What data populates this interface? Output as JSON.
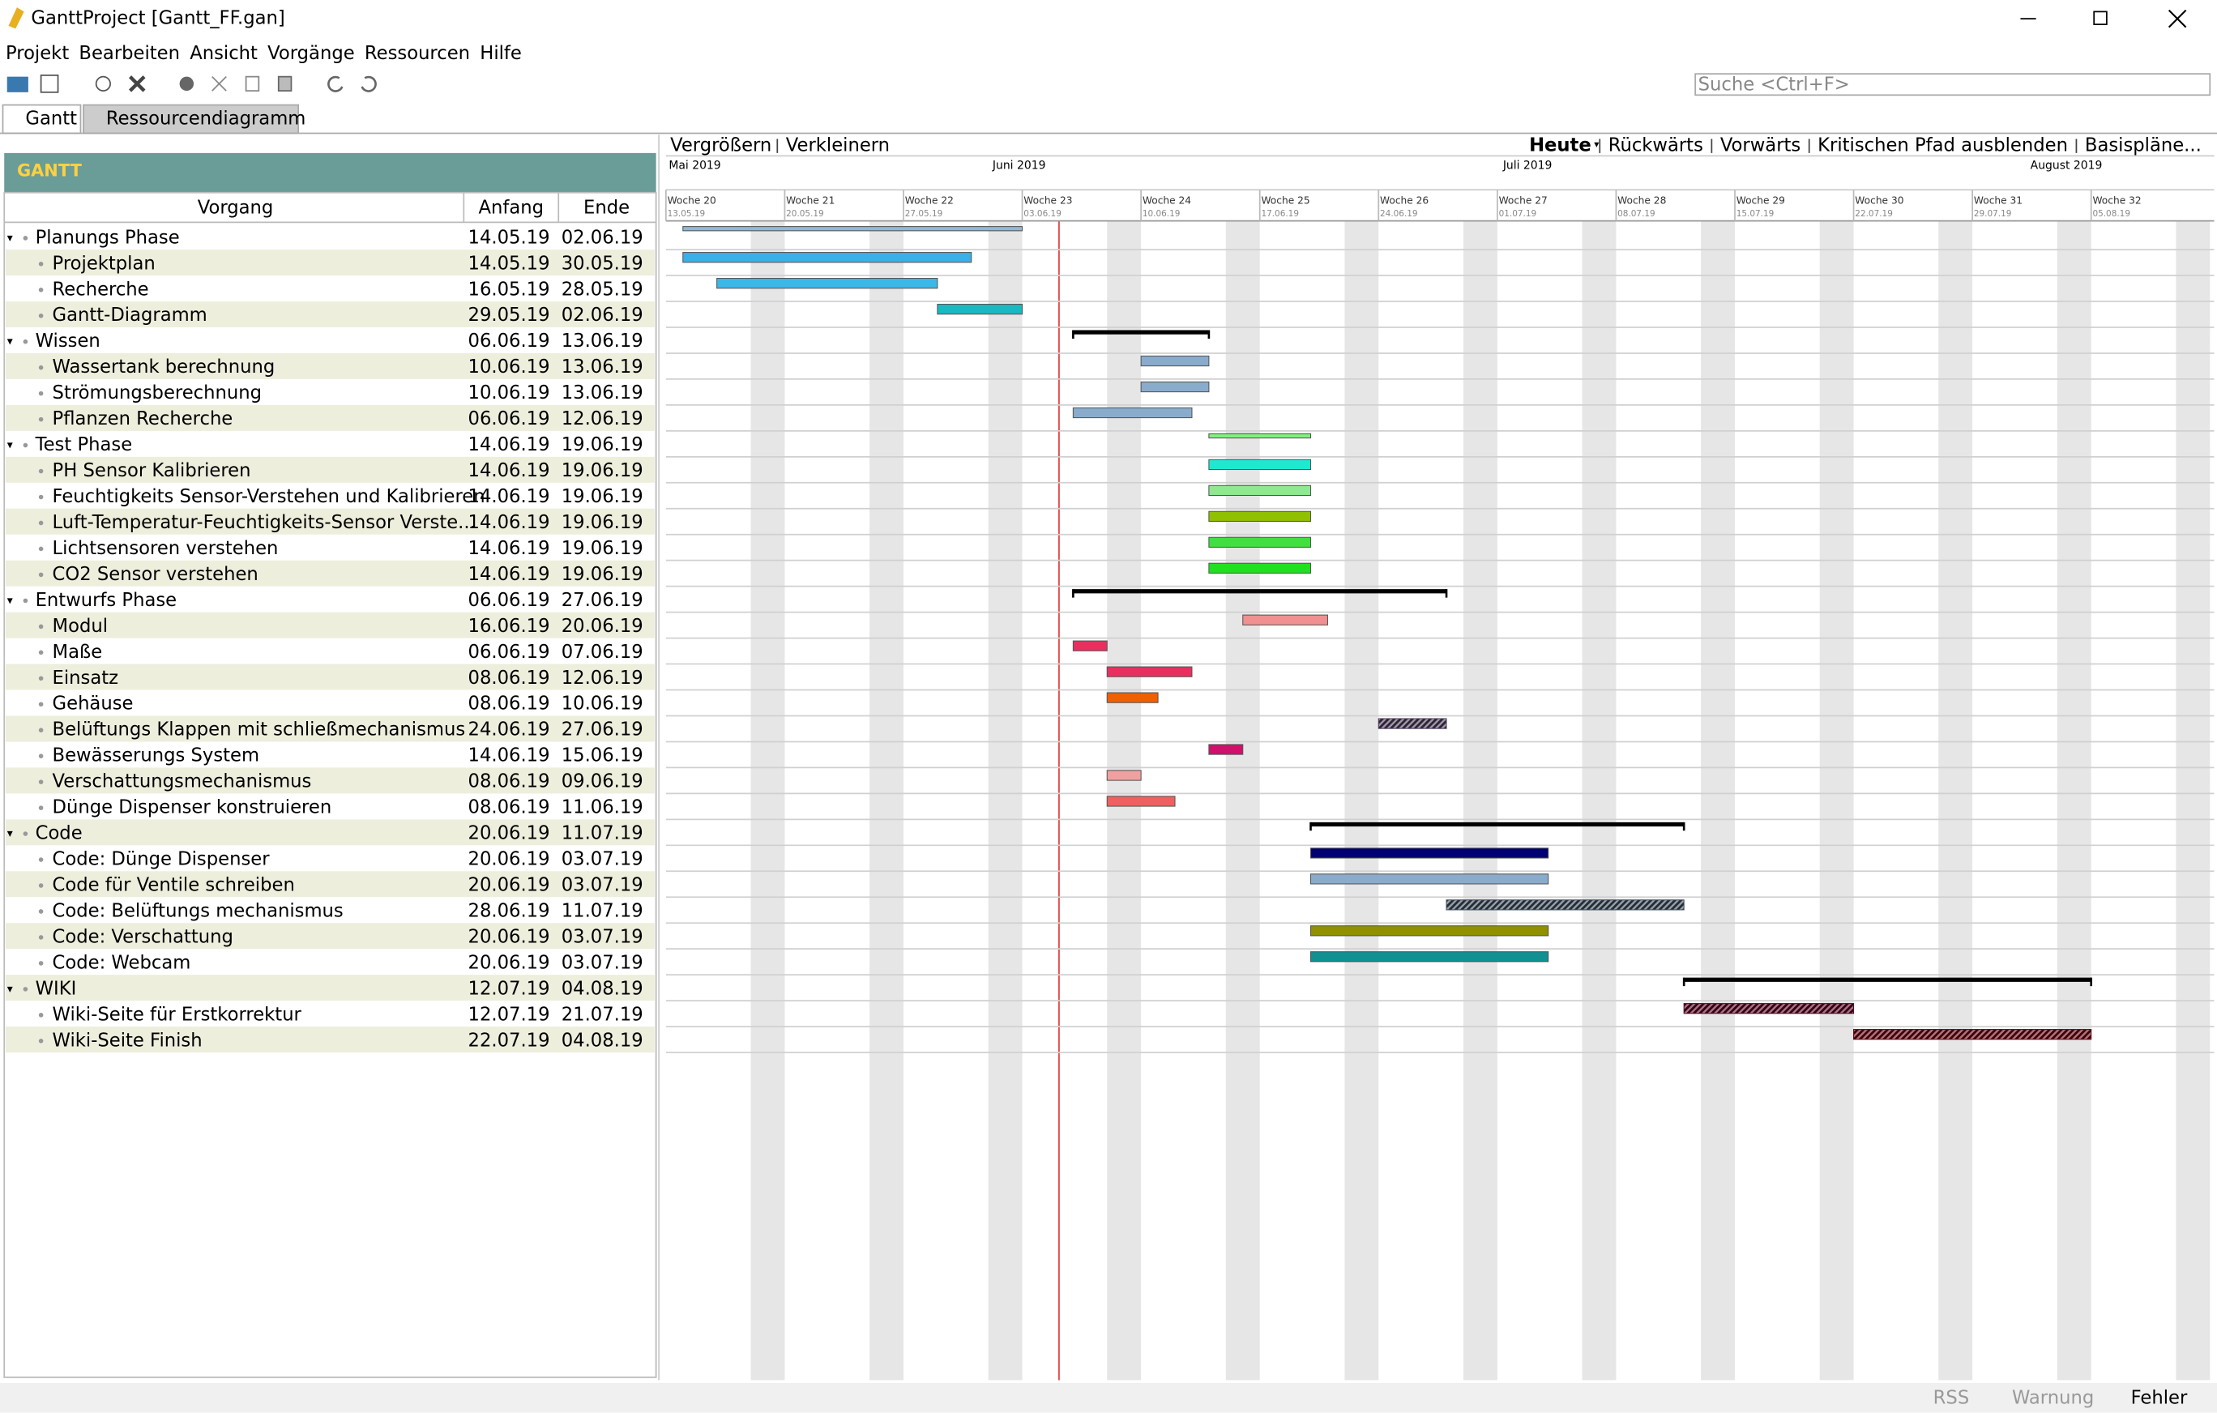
{
  "window": {
    "title": "GanttProject [Gantt_FF.gan]"
  },
  "menu": [
    "Projekt",
    "Bearbeiten",
    "Ansicht",
    "Vorgänge",
    "Ressourcen",
    "Hilfe"
  ],
  "search": "Suche <Ctrl+F>",
  "tabs": [
    "Gantt",
    "Ressourcendiagramm"
  ],
  "columns": [
    "Vorgang",
    "Anfang",
    "Ende"
  ],
  "tasks": [
    {
      "name": "Planungs Phase",
      "start": "14.05.19",
      "end": "02.06.19",
      "group": true,
      "color": "#8fb8d8"
    },
    {
      "name": "Projektplan",
      "start": "14.05.19",
      "end": "30.05.19",
      "color": "#3ab0e8"
    },
    {
      "name": "Recherche",
      "start": "16.05.19",
      "end": "28.05.19",
      "color": "#3ab8e8"
    },
    {
      "name": "Gantt-Diagramm",
      "start": "29.05.19",
      "end": "02.06.19",
      "color": "#1ab8c0"
    },
    {
      "name": "Wissen",
      "start": "06.06.19",
      "end": "13.06.19",
      "group": true,
      "color": "#000000"
    },
    {
      "name": "Wassertank berechnung",
      "start": "10.06.19",
      "end": "13.06.19",
      "color": "#8aaccc"
    },
    {
      "name": "Strömungsberechnung",
      "start": "10.06.19",
      "end": "13.06.19",
      "color": "#8aaccc"
    },
    {
      "name": "Pflanzen Recherche",
      "start": "06.06.19",
      "end": "12.06.19",
      "color": "#8aaccc"
    },
    {
      "name": "Test Phase",
      "start": "14.06.19",
      "end": "19.06.19",
      "group": true,
      "color": "#80f080"
    },
    {
      "name": "PH Sensor Kalibrieren",
      "start": "14.06.19",
      "end": "19.06.19",
      "color": "#20e8d0"
    },
    {
      "name": "Feuchtigkeits Sensor-Verstehen und Kalibrieren",
      "start": "14.06.19",
      "end": "19.06.19",
      "color": "#90e890"
    },
    {
      "name": "Luft-Temperatur-Feuchtigkeits-Sensor Verste...",
      "start": "14.06.19",
      "end": "19.06.19",
      "color": "#90c000"
    },
    {
      "name": "Lichtsensoren verstehen",
      "start": "14.06.19",
      "end": "19.06.19",
      "color": "#40e040"
    },
    {
      "name": "CO2 Sensor verstehen",
      "start": "14.06.19",
      "end": "19.06.19",
      "color": "#20e020"
    },
    {
      "name": "Entwurfs Phase",
      "start": "06.06.19",
      "end": "27.06.19",
      "group": true,
      "color": "#000000"
    },
    {
      "name": "Modul",
      "start": "16.06.19",
      "end": "20.06.19",
      "color": "#f09090"
    },
    {
      "name": "Maße",
      "start": "06.06.19",
      "end": "07.06.19",
      "color": "#e83060"
    },
    {
      "name": "Einsatz",
      "start": "08.06.19",
      "end": "12.06.19",
      "color": "#e83060"
    },
    {
      "name": "Gehäuse",
      "start": "08.06.19",
      "end": "10.06.19",
      "color": "#f06000"
    },
    {
      "name": "Belüftungs Klappen mit schließmechanismus",
      "start": "24.06.19",
      "end": "27.06.19",
      "color": "#504060",
      "hatched": true
    },
    {
      "name": "Bewässerungs System",
      "start": "14.06.19",
      "end": "15.06.19",
      "color": "#d0106a"
    },
    {
      "name": "Verschattungsmechanismus",
      "start": "08.06.19",
      "end": "09.06.19",
      "color": "#f0a0a0"
    },
    {
      "name": "Dünge Dispenser konstruieren",
      "start": "08.06.19",
      "end": "11.06.19",
      "color": "#f06060"
    },
    {
      "name": "Code",
      "start": "20.06.19",
      "end": "11.07.19",
      "group": true,
      "color": "#000000"
    },
    {
      "name": "Code: Dünge Dispenser",
      "start": "20.06.19",
      "end": "03.07.19",
      "color": "#000070"
    },
    {
      "name": "Code für Ventile schreiben",
      "start": "20.06.19",
      "end": "03.07.19",
      "color": "#8aaccc"
    },
    {
      "name": "Code: Belüftungs mechanismus",
      "start": "28.06.19",
      "end": "11.07.19",
      "color": "#405060",
      "hatched": true
    },
    {
      "name": "Code: Verschattung",
      "start": "20.06.19",
      "end": "03.07.19",
      "color": "#909000"
    },
    {
      "name": "Code: Webcam",
      "start": "20.06.19",
      "end": "03.07.19",
      "color": "#109090"
    },
    {
      "name": "WIKI",
      "start": "12.07.19",
      "end": "04.08.19",
      "group": true,
      "color": "#000000"
    },
    {
      "name": "Wiki-Seite für Erstkorrektur",
      "start": "12.07.19",
      "end": "21.07.19",
      "color": "#600020",
      "hatched": true
    },
    {
      "name": "Wiki-Seite Finish",
      "start": "22.07.19",
      "end": "04.08.19",
      "color": "#700010",
      "hatched": true
    }
  ],
  "gantt_toolbar": {
    "left": [
      "Vergrößern",
      "Verkleinern"
    ],
    "right": [
      "Heute",
      "Rückwärts",
      "Vorwärts",
      "Kritischen Pfad ausblenden",
      "Basispläne..."
    ]
  },
  "months": [
    "Mai 2019",
    "Juni 2019",
    "Juli 2019",
    "August 2019"
  ],
  "weeks": [
    {
      "label": "Woche 20",
      "date": "13.05.19"
    },
    {
      "label": "Woche 21",
      "date": "20.05.19"
    },
    {
      "label": "Woche 22",
      "date": "27.05.19"
    },
    {
      "label": "Woche 23",
      "date": "03.06.19"
    },
    {
      "label": "Woche 24",
      "date": "10.06.19"
    },
    {
      "label": "Woche 25",
      "date": "17.06.19"
    },
    {
      "label": "Woche 26",
      "date": "24.06.19"
    },
    {
      "label": "Woche 27",
      "date": "01.07.19"
    },
    {
      "label": "Woche 28",
      "date": "08.07.19"
    },
    {
      "label": "Woche 29",
      "date": "15.07.19"
    },
    {
      "label": "Woche 30",
      "date": "22.07.19"
    },
    {
      "label": "Woche 31",
      "date": "29.07.19"
    },
    {
      "label": "Woche 32",
      "date": "05.08.19"
    }
  ],
  "status": [
    "RSS",
    "Warnung",
    "Fehler"
  ]
}
